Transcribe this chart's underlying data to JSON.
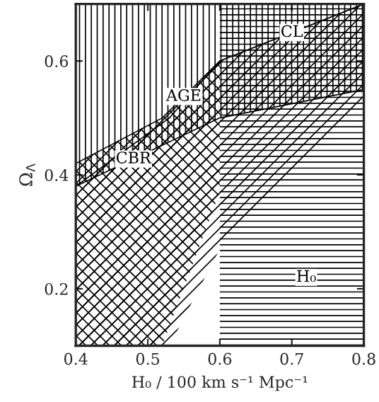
{
  "chart_data": {
    "type": "line",
    "xlabel": "H₀ / 100 km s⁻¹ Mpc⁻¹",
    "ylabel": "Ω$_{Λ}$",
    "xlim": [
      0.4,
      0.8
    ],
    "xticks": [
      0.4,
      0.5,
      0.6,
      0.7,
      0.8
    ],
    "ylim": [
      0.1,
      0.7
    ],
    "yticks": [
      0.2,
      0.4,
      0.6
    ],
    "grid": false,
    "legend": false,
    "series": [
      {
        "name": "CBR",
        "color": "#000000",
        "x": [
          0.4,
          0.6,
          0.8
        ],
        "values": [
          0.38,
          0.5,
          0.55
        ],
        "lower": [
          0.38,
          0.5,
          0.55
        ],
        "upper": [
          0.7,
          0.7,
          0.7
        ]
      },
      {
        "name": "AGE",
        "color": "#000000",
        "x": [
          0.4,
          0.52,
          0.6
        ],
        "values": [
          0.42,
          0.5,
          0.6
        ],
        "lower": [
          0.1,
          0.1,
          0.37
        ],
        "upper": [
          0.42,
          0.5,
          0.6
        ]
      },
      {
        "name": "CL",
        "color": "#000000",
        "x": [
          0.4,
          0.53,
          0.6,
          0.8
        ],
        "values": [
          0.38,
          0.5,
          0.6,
          0.7
        ],
        "lower": [
          0.1,
          0.1,
          0.27,
          0.52
        ],
        "upper": [
          0.38,
          0.5,
          0.6,
          0.7
        ]
      }
    ],
    "bands": [
      {
        "axis": "x",
        "from": 0.6,
        "to": 0.8,
        "label": "H₀",
        "color": "#000000"
      }
    ]
  }
}
